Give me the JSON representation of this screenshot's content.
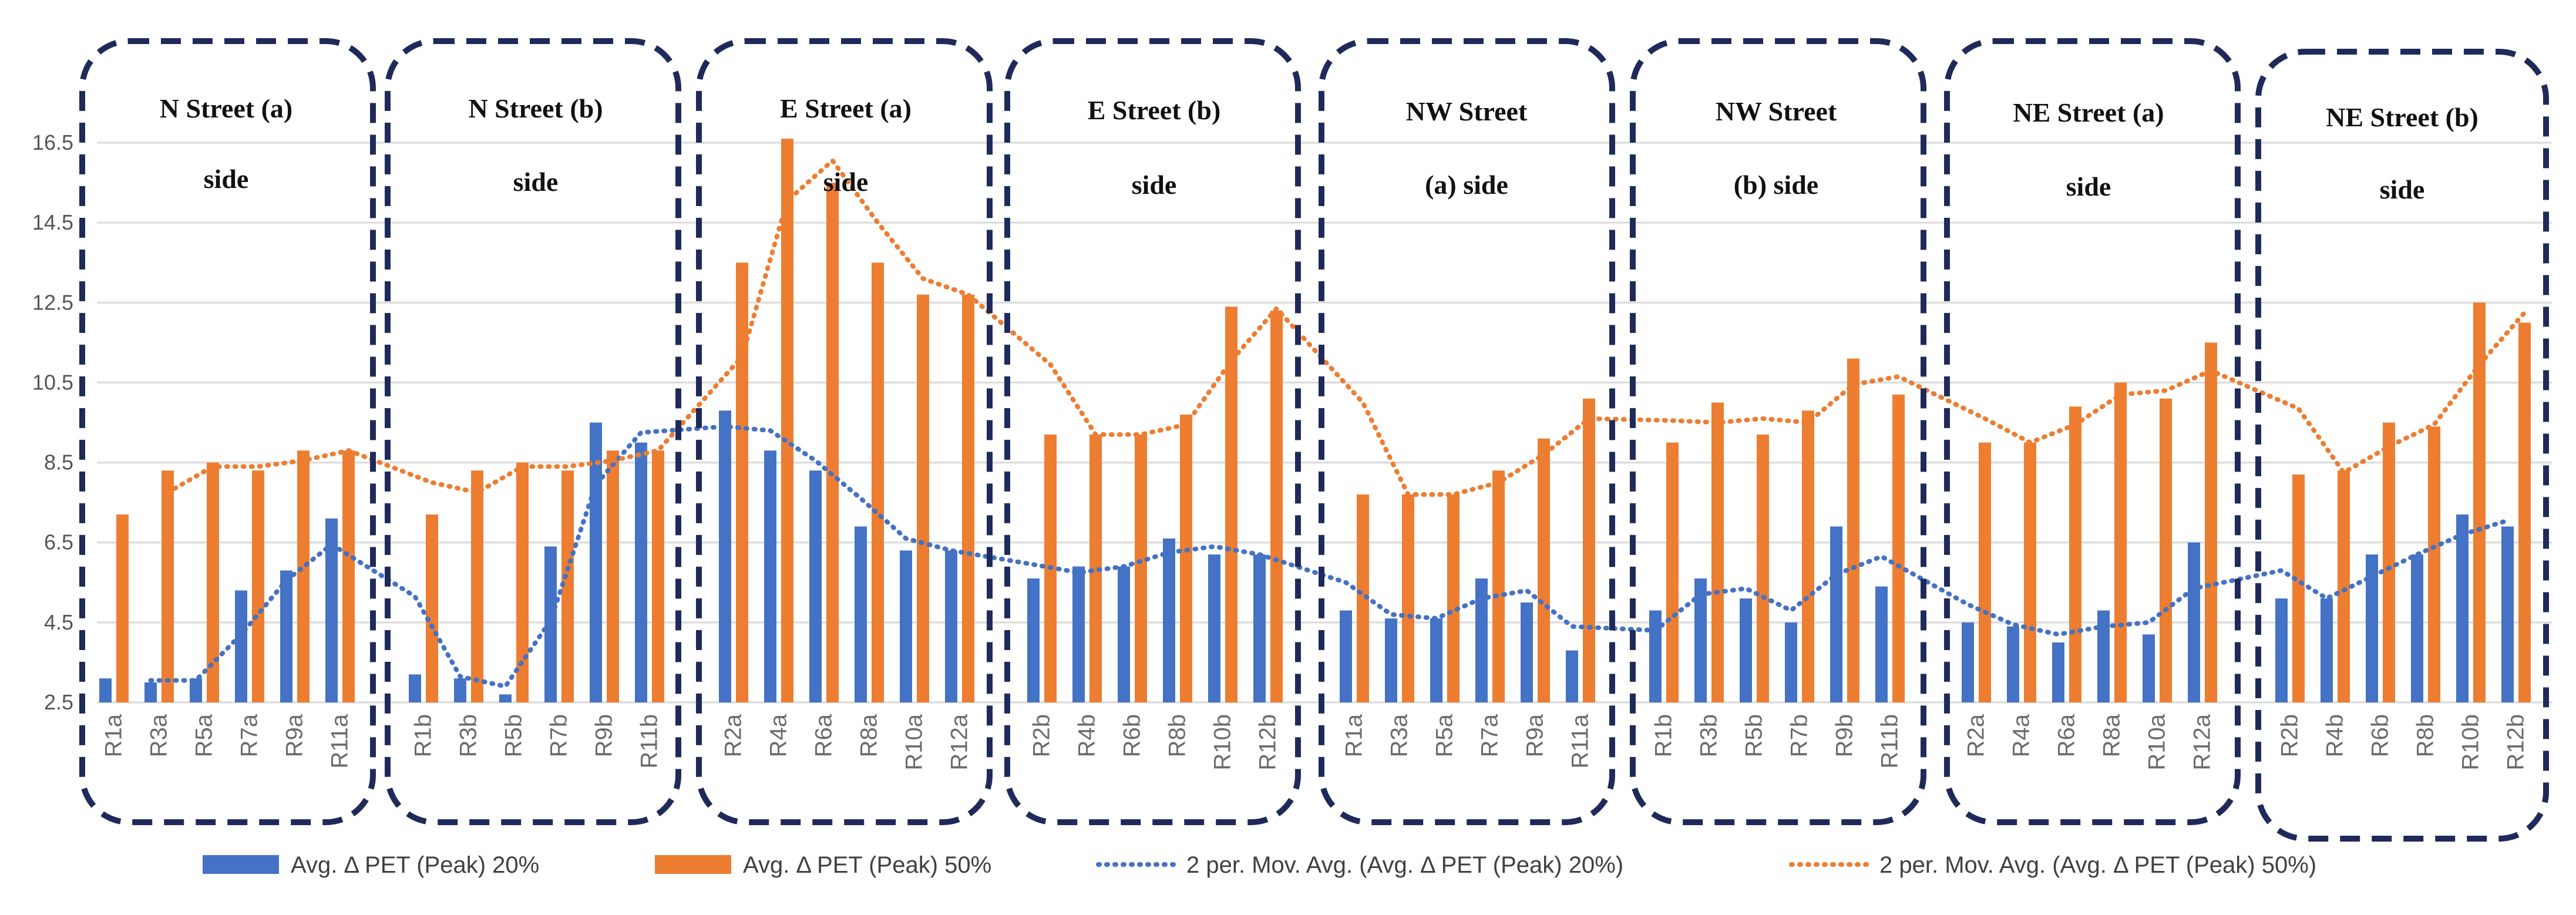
{
  "chart_data": {
    "type": "bar",
    "title": "",
    "xlabel": "",
    "ylabel": "",
    "ylim": [
      2.5,
      17.5
    ],
    "yticks": [
      "2.5",
      "4.5",
      "6.5",
      "8.5",
      "10.5",
      "12.5",
      "14.5",
      "16.5"
    ],
    "colors": {
      "blue": "#4472C4",
      "orange": "#ED7D31",
      "frame": "#1F2A5A",
      "grid": "#d9d9d9"
    },
    "groups": [
      {
        "title_lines": [
          "N Street (a)",
          "side"
        ],
        "categories": [
          "R1a",
          "R3a",
          "R5a",
          "R7a",
          "R9a",
          "R11a"
        ],
        "series_20": [
          3.1,
          3.0,
          3.1,
          5.3,
          5.8,
          7.1
        ],
        "series_50": [
          7.2,
          8.3,
          8.5,
          8.3,
          8.8,
          8.8
        ]
      },
      {
        "title_lines": [
          "N Street (b)",
          "side"
        ],
        "categories": [
          "R1b",
          "R3b",
          "R5b",
          "R7b",
          "R9b",
          "R11b"
        ],
        "series_20": [
          3.2,
          3.1,
          2.7,
          6.4,
          9.5,
          9.0
        ],
        "series_50": [
          7.2,
          8.3,
          8.5,
          8.3,
          8.8,
          8.8
        ]
      },
      {
        "title_lines": [
          "E Street (a)",
          "side"
        ],
        "categories": [
          "R2a",
          "R4a",
          "R6a",
          "R8a",
          "R10a",
          "R12a"
        ],
        "series_20": [
          9.8,
          8.8,
          8.3,
          6.9,
          6.3,
          6.3
        ],
        "series_50": [
          13.5,
          16.6,
          15.5,
          13.5,
          12.7,
          12.7
        ]
      },
      {
        "title_lines": [
          "E Street (b)",
          "side"
        ],
        "categories": [
          "R2b",
          "R4b",
          "R6b",
          "R8b",
          "R10b",
          "R12b"
        ],
        "series_20": [
          5.6,
          5.9,
          5.9,
          6.6,
          6.2,
          6.2
        ],
        "series_50": [
          9.2,
          9.2,
          9.2,
          9.7,
          12.4,
          12.3
        ]
      },
      {
        "title_lines": [
          "NW Street",
          "(a) side"
        ],
        "categories": [
          "R1a",
          "R3a",
          "R5a",
          "R7a",
          "R9a",
          "R11a"
        ],
        "series_20": [
          4.8,
          4.6,
          4.6,
          5.6,
          5.0,
          3.8
        ],
        "series_50": [
          7.7,
          7.7,
          7.7,
          8.3,
          9.1,
          10.1
        ]
      },
      {
        "title_lines": [
          "NW Street",
          "(b) side"
        ],
        "categories": [
          "R1b",
          "R3b",
          "R5b",
          "R7b",
          "R9b",
          "R11b"
        ],
        "series_20": [
          4.8,
          5.6,
          5.1,
          4.5,
          6.9,
          5.4
        ],
        "series_50": [
          9.0,
          10.0,
          9.2,
          9.8,
          11.1,
          10.2
        ]
      },
      {
        "title_lines": [
          "NE Street (a)",
          "side"
        ],
        "categories": [
          "R2a",
          "R4a",
          "R6a",
          "R8a",
          "R10a",
          "R12a"
        ],
        "series_20": [
          4.5,
          4.4,
          4.0,
          4.8,
          4.2,
          6.5
        ],
        "series_50": [
          9.0,
          9.0,
          9.9,
          10.5,
          10.1,
          11.5
        ]
      },
      {
        "title_lines": [
          "NE Street (b)",
          "side"
        ],
        "categories": [
          "R2b",
          "R4b",
          "R6b",
          "R8b",
          "R10b",
          "R12b"
        ],
        "series_20": [
          5.1,
          5.1,
          6.2,
          6.2,
          7.2,
          6.9
        ],
        "series_50": [
          8.2,
          8.3,
          9.5,
          9.4,
          12.5,
          12.0
        ]
      }
    ],
    "legend": [
      {
        "key": "bar20",
        "label": "Avg. Δ PET (Peak) 20%"
      },
      {
        "key": "bar50",
        "label": "Avg. Δ PET (Peak) 50%"
      },
      {
        "key": "ma20",
        "label": "2 per. Mov. Avg. (Avg. Δ PET (Peak) 20%)"
      },
      {
        "key": "ma50",
        "label": "2 per. Mov. Avg. (Avg. Δ PET (Peak) 50%)"
      }
    ]
  }
}
